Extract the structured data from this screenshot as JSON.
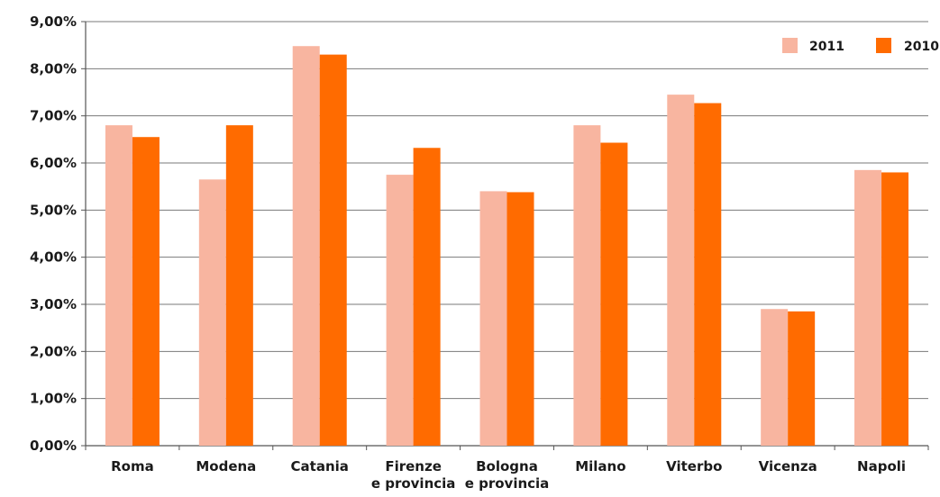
{
  "chart_data": {
    "type": "bar",
    "categories": [
      "Roma",
      "Modena",
      "Catania",
      "Firenze\ne provincia",
      "Bologna\ne provincia",
      "Milano",
      "Viterbo",
      "Vicenza",
      "Napoli"
    ],
    "series": [
      {
        "name": "2011",
        "color": "#f8b5a0",
        "values": [
          6.8,
          5.65,
          8.48,
          5.75,
          5.4,
          6.8,
          7.45,
          2.9,
          5.85
        ]
      },
      {
        "name": "2010",
        "color": "#ff6b00",
        "values": [
          6.55,
          6.8,
          8.3,
          6.32,
          5.38,
          6.43,
          7.27,
          2.85,
          5.8
        ]
      }
    ],
    "ylim": [
      0,
      9
    ],
    "yticks": [
      "0,00%",
      "1,00%",
      "2,00%",
      "3,00%",
      "4,00%",
      "5,00%",
      "6,00%",
      "7,00%",
      "8,00%",
      "9,00%"
    ],
    "grid": true,
    "legend_position": "top-right",
    "title": "",
    "xlabel": "",
    "ylabel": ""
  }
}
